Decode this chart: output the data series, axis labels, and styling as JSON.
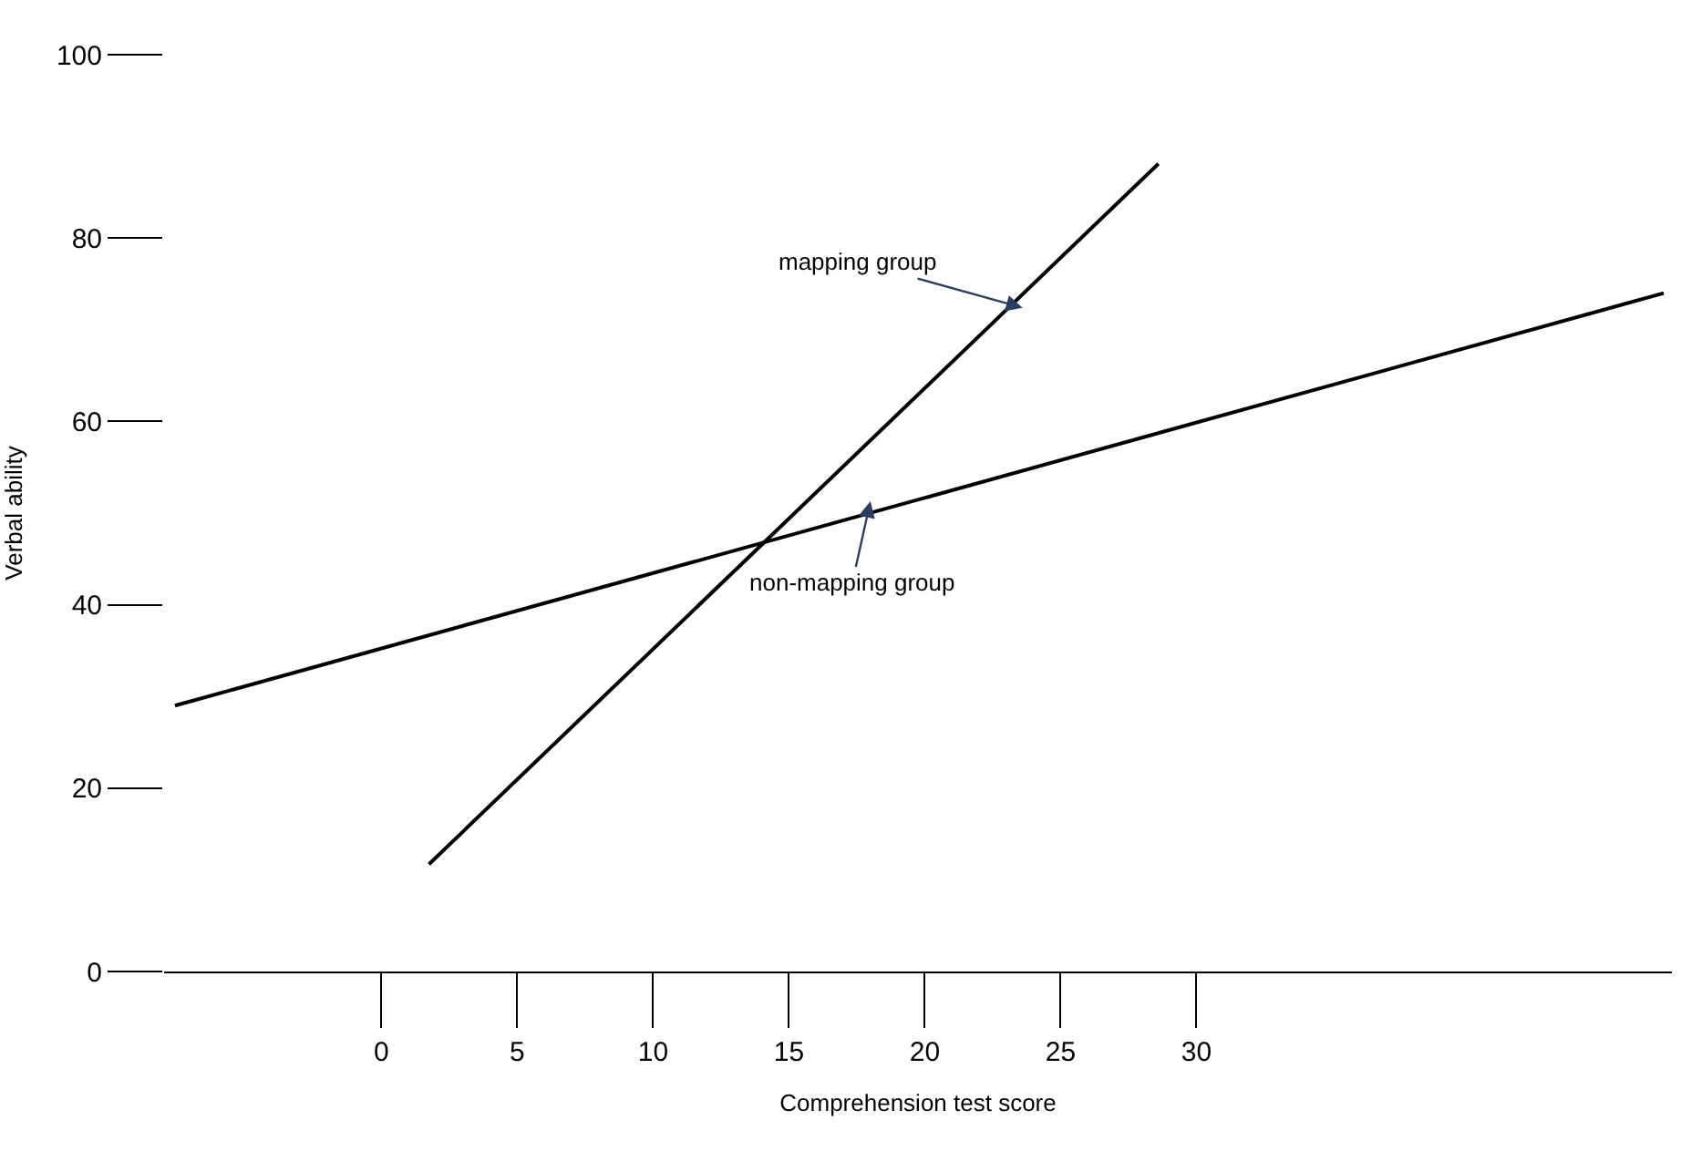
{
  "chart_data": {
    "type": "line",
    "xlabel": "Comprehension test score",
    "ylabel": "Verbal ability",
    "series": [
      {
        "color": "#000000",
        "x": [
          1.75,
          28.6
        ],
        "values": [
          11.7,
          88.1
        ]
      },
      {
        "color": "#000000",
        "x": [
          -7.6,
          47.2
        ],
        "values": [
          29.0,
          74.0
        ]
      }
    ],
    "annotations": [
      {
        "text": "mapping group",
        "x": 23.6,
        "y": 72.4
      },
      {
        "text": "non-mapping group",
        "x": 18,
        "y": 51.3
      }
    ],
    "xlim": [
      -8,
      47.5
    ],
    "ylim": [
      0,
      100
    ],
    "xticks": [
      0,
      5,
      10,
      15,
      20,
      25,
      30
    ],
    "yticks": [
      0,
      20,
      40,
      60,
      80,
      100
    ],
    "marker": "none",
    "line_style": "solid"
  }
}
